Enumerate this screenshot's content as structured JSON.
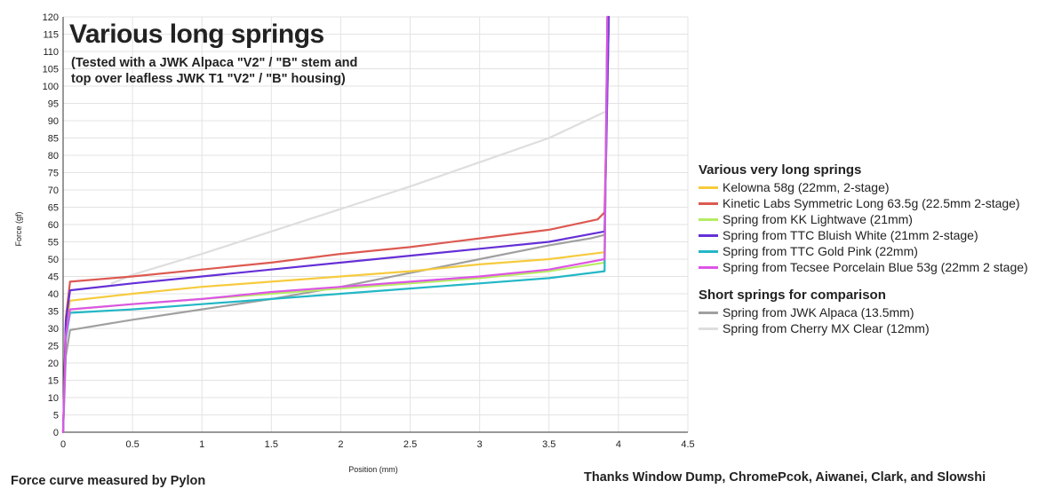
{
  "chart_data": {
    "type": "line",
    "title": "Various long springs",
    "subtitle": "(Tested with a JWK Alpaca \"V2\" / \"B\" stem and top over leafless JWK T1 \"V2\" / \"B\" housing)",
    "xlabel": "Position (mm)",
    "ylabel": "Force (gf)",
    "xlim": [
      0,
      4.5
    ],
    "ylim": [
      0,
      120
    ],
    "x_ticks": [
      "0",
      "0.5",
      "1",
      "1.5",
      "2",
      "2.5",
      "3",
      "3.5",
      "4",
      "4.5"
    ],
    "y_ticks": [
      "0",
      "5",
      "10",
      "15",
      "20",
      "25",
      "30",
      "35",
      "40",
      "45",
      "50",
      "55",
      "60",
      "65",
      "70",
      "75",
      "80",
      "85",
      "90",
      "95",
      "100",
      "105",
      "110",
      "115",
      "120"
    ],
    "grid": true,
    "legend_position": "right",
    "legend_groups": [
      {
        "title": "Various very long springs",
        "series": [
          {
            "name": "Kelowna 58g (22mm, 2-stage)",
            "color": "#f6cb3e"
          },
          {
            "name": "Kinetic Labs Symmetric Long 63.5g (22.5mm 2-stage)",
            "color": "#dc5a52"
          },
          {
            "name": "Spring from KK Lightwave (21mm)",
            "color": "#b6ec63"
          },
          {
            "name": "Spring from TTC Bluish White (21mm 2-stage)",
            "color": "#6530d6"
          },
          {
            "name": "Spring from TTC Gold Pink (22mm)",
            "color": "#23b7c6"
          },
          {
            "name": "Spring from Tecsee Porcelain Blue 53g (22mm 2 stage)",
            "color": "#dd55e6"
          }
        ]
      },
      {
        "title": "Short springs for comparison",
        "series": [
          {
            "name": "Spring from JWK  Alpaca (13.5mm)",
            "color": "#a0a0a0"
          },
          {
            "name": "Spring from Cherry MX Clear (12mm)",
            "color": "#dedede"
          }
        ]
      }
    ],
    "series": [
      {
        "name": "Kelowna 58g (22mm, 2-stage)",
        "color": "#f6cb3e",
        "x": [
          0,
          0.02,
          0.05,
          0.5,
          1.0,
          1.5,
          2.0,
          2.5,
          3.0,
          3.5,
          3.9,
          3.92
        ],
        "y": [
          0,
          30,
          38,
          40,
          42,
          43.5,
          45,
          46.5,
          48.5,
          50,
          52,
          120
        ]
      },
      {
        "name": "Kinetic Labs Symmetric Long 63.5g (22.5mm 2-stage)",
        "color": "#dc5a52",
        "x": [
          0,
          0.02,
          0.05,
          0.5,
          1.0,
          1.5,
          2.0,
          2.5,
          3.0,
          3.5,
          3.85,
          3.9,
          3.93
        ],
        "y": [
          0,
          33,
          43.5,
          45,
          47,
          49,
          51.5,
          53.5,
          56,
          58.5,
          61.5,
          63.5,
          120
        ]
      },
      {
        "name": "Spring from KK Lightwave (21mm)",
        "color": "#b6ec63",
        "x": [
          0,
          0.02,
          0.05,
          0.5,
          1.0,
          1.5,
          2.0,
          2.5,
          3.0,
          3.5,
          3.9,
          3.92
        ],
        "y": [
          0,
          28,
          35.5,
          37,
          38.5,
          40,
          41.5,
          43,
          44.5,
          46.5,
          49,
          120
        ]
      },
      {
        "name": "Spring from TTC Bluish White (21mm 2-stage)",
        "color": "#6530d6",
        "x": [
          0,
          0.02,
          0.05,
          0.5,
          1.0,
          1.5,
          2.0,
          2.5,
          3.0,
          3.5,
          3.9,
          3.93
        ],
        "y": [
          0,
          32,
          41,
          43,
          45,
          47,
          49,
          51,
          53,
          55,
          58,
          120
        ]
      },
      {
        "name": "Spring from TTC Gold Pink (22mm)",
        "color": "#23b7c6",
        "x": [
          0,
          0.02,
          0.05,
          0.5,
          1.0,
          1.5,
          2.0,
          2.5,
          3.0,
          3.5,
          3.9,
          3.92
        ],
        "y": [
          0,
          27,
          34.5,
          35.5,
          37,
          38.5,
          40,
          41.5,
          43,
          44.5,
          46.5,
          120
        ]
      },
      {
        "name": "Spring from Tecsee Porcelain Blue 53g (22mm 2 stage)",
        "color": "#dd55e6",
        "x": [
          0,
          0.02,
          0.05,
          0.5,
          1.0,
          1.5,
          2.0,
          2.5,
          3.0,
          3.5,
          3.9,
          3.92
        ],
        "y": [
          0,
          28,
          35.5,
          37,
          38.5,
          40.5,
          42,
          43.5,
          45,
          47,
          50,
          120
        ]
      },
      {
        "name": "Spring from JWK  Alpaca (13.5mm)",
        "color": "#a0a0a0",
        "x": [
          0,
          0.02,
          0.05,
          0.5,
          1.0,
          1.5,
          2.0,
          2.5,
          3.0,
          3.5,
          3.8,
          3.9,
          3.93
        ],
        "y": [
          0,
          22,
          29.5,
          32.5,
          35.5,
          38.5,
          42,
          46,
          50,
          54,
          56,
          57,
          120
        ]
      },
      {
        "name": "Spring from Cherry MX Clear (12mm)",
        "color": "#dedede",
        "x": [
          0.35,
          0.5,
          1.0,
          1.5,
          2.0,
          2.5,
          3.0,
          3.5,
          3.9
        ],
        "y": [
          43,
          45.5,
          51.5,
          58,
          64.5,
          71,
          78,
          85,
          92.5
        ]
      }
    ]
  },
  "footer": {
    "left": "Force curve measured by Pylon",
    "right": "Thanks Window Dump, ChromePcok, Aiwanei, Clark, and  Slowshi"
  }
}
